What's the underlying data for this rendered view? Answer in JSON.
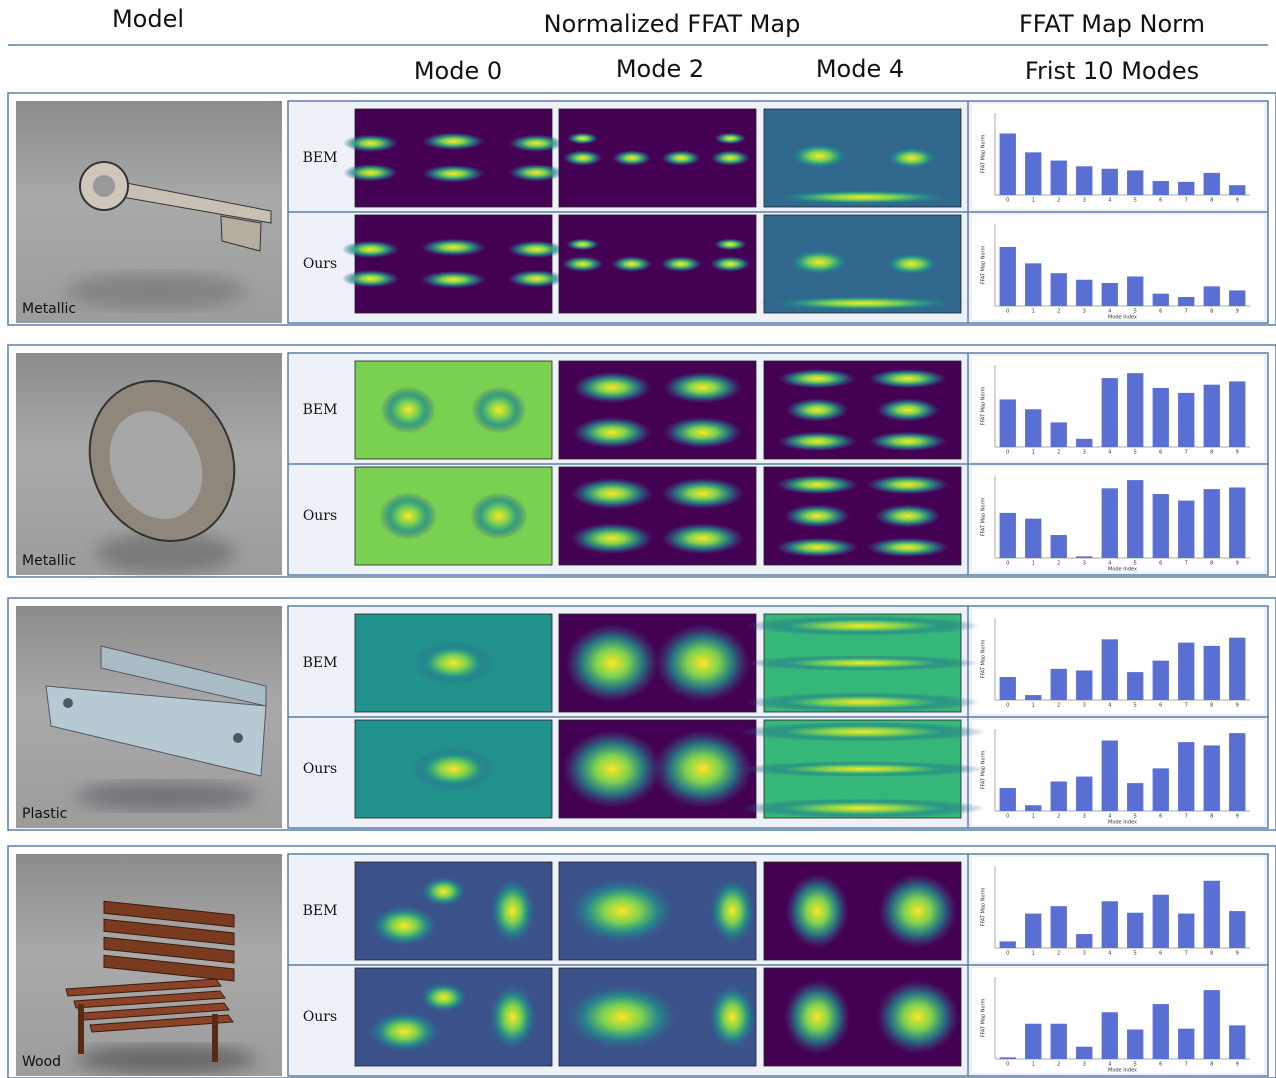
{
  "header": {
    "model": "Model",
    "ffat_map": "Normalized FFAT Map",
    "ffat_norm": "FFAT Map Norm",
    "modes": [
      "Mode 0",
      "Mode 2",
      "Mode 4"
    ],
    "first_modes": "Frist 10 Modes"
  },
  "method_labels": [
    "BEM",
    "Ours"
  ],
  "rows": [
    {
      "material": "Metallic",
      "charts": [
        {
          "type": "bar",
          "y_label": "FFAT Map Norm",
          "categories": [
            "0",
            "1",
            "2",
            "3",
            "4",
            "5",
            "6",
            "7",
            "8",
            "9"
          ],
          "values": [
            75,
            52,
            42,
            35,
            32,
            30,
            17,
            16,
            27,
            12
          ],
          "ylim": [
            0,
            100
          ],
          "color": "#5a6fd3"
        },
        {
          "type": "bar",
          "y_label": "FFAT Map Norm",
          "x_label": "Mode Index",
          "categories": [
            "0",
            "1",
            "2",
            "3",
            "4",
            "5",
            "6",
            "7",
            "8",
            "9"
          ],
          "values": [
            72,
            52,
            40,
            32,
            28,
            36,
            15,
            11,
            24,
            19
          ],
          "ylim": [
            0,
            100
          ],
          "color": "#5a6fd3"
        }
      ]
    },
    {
      "material": "Metallic",
      "charts": [
        {
          "type": "bar",
          "y_label": "FFAT Map Norm",
          "categories": [
            "0",
            "1",
            "2",
            "3",
            "4",
            "5",
            "6",
            "7",
            "8",
            "9"
          ],
          "values": [
            58,
            46,
            30,
            10,
            84,
            90,
            72,
            66,
            76,
            80
          ],
          "ylim": [
            0,
            100
          ],
          "color": "#5a6fd3"
        },
        {
          "type": "bar",
          "y_label": "FFAT Map Norm",
          "x_label": "Mode Index",
          "categories": [
            "0",
            "1",
            "2",
            "3",
            "4",
            "5",
            "6",
            "7",
            "8",
            "9"
          ],
          "values": [
            55,
            48,
            28,
            2,
            85,
            95,
            78,
            70,
            84,
            86
          ],
          "ylim": [
            0,
            100
          ],
          "color": "#5a6fd3"
        }
      ]
    },
    {
      "material": "Plastic",
      "charts": [
        {
          "type": "bar",
          "y_label": "FFAT Map Norm",
          "categories": [
            "0",
            "1",
            "2",
            "3",
            "4",
            "5",
            "6",
            "7",
            "8",
            "9"
          ],
          "values": [
            28,
            6,
            38,
            36,
            74,
            34,
            48,
            70,
            66,
            76
          ],
          "ylim": [
            0,
            100
          ],
          "color": "#5a6fd3"
        },
        {
          "type": "bar",
          "y_label": "FFAT Map Norm",
          "x_label": "Mode Index",
          "categories": [
            "0",
            "1",
            "2",
            "3",
            "4",
            "5",
            "6",
            "7",
            "8",
            "9"
          ],
          "values": [
            28,
            7,
            36,
            42,
            86,
            34,
            52,
            84,
            80,
            95
          ],
          "ylim": [
            0,
            100
          ],
          "color": "#5a6fd3"
        }
      ]
    },
    {
      "material": "Wood",
      "charts": [
        {
          "type": "bar",
          "y_label": "FFAT Map Norm",
          "categories": [
            "0",
            "1",
            "2",
            "3",
            "4",
            "5",
            "6",
            "7",
            "8",
            "9"
          ],
          "values": [
            8,
            42,
            51,
            17,
            57,
            43,
            65,
            42,
            82,
            45
          ],
          "ylim": [
            0,
            100
          ],
          "color": "#5a6fd3"
        },
        {
          "type": "bar",
          "y_label": "FFAT Map Norm",
          "x_label": "Mode Index",
          "categories": [
            "0",
            "1",
            "2",
            "3",
            "4",
            "5",
            "6",
            "7",
            "8",
            "9"
          ],
          "values": [
            2,
            43,
            43,
            15,
            57,
            36,
            67,
            37,
            84,
            41
          ],
          "ylim": [
            0,
            100
          ],
          "color": "#5a6fd3"
        }
      ]
    }
  ]
}
